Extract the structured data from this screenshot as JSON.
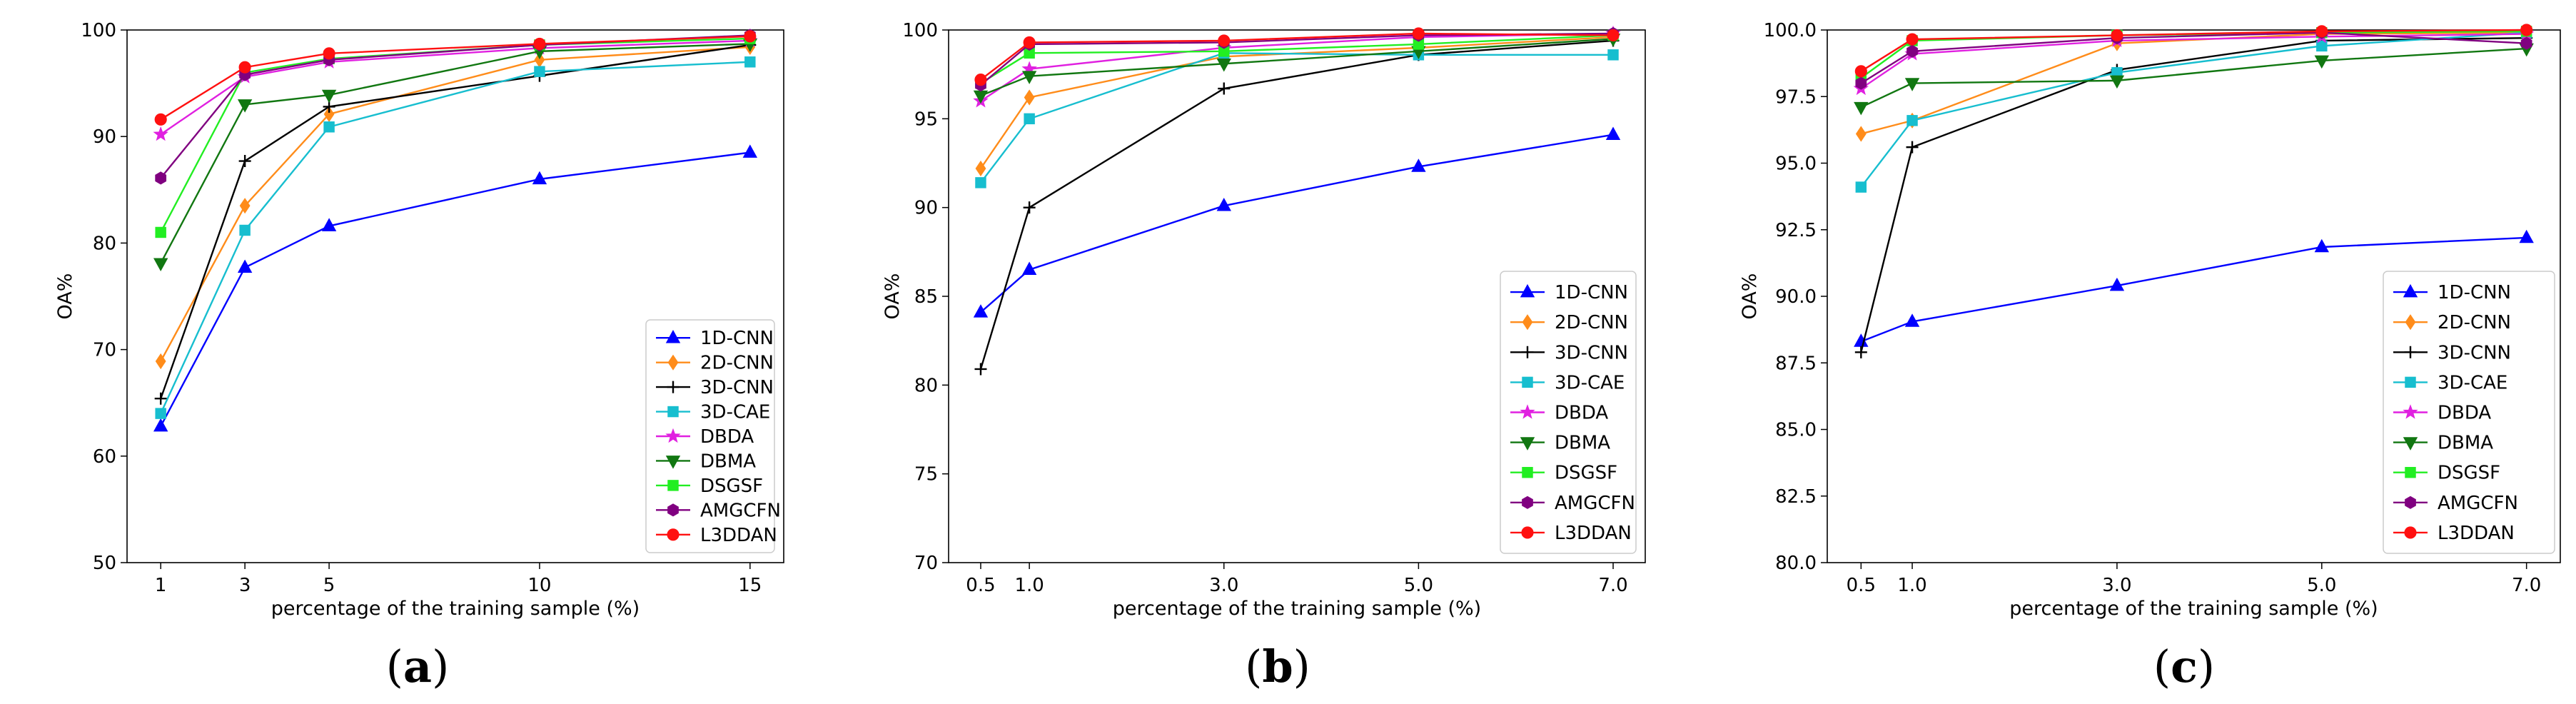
{
  "legend_entries": [
    "1D-CNN",
    "2D-CNN",
    "3D-CNN",
    "3D-CAE",
    "DBDA",
    "DBMA",
    "DSGSF",
    "AMGCFN",
    "L3DDAN"
  ],
  "series_styles": [
    {
      "name": "1D-CNN",
      "color": "#0000ff",
      "marker": "triangle-up"
    },
    {
      "name": "2D-CNN",
      "color": "#ff8c1a",
      "marker": "diamond"
    },
    {
      "name": "3D-CNN",
      "color": "#000000",
      "marker": "plus"
    },
    {
      "name": "3D-CAE",
      "color": "#17becf",
      "marker": "square"
    },
    {
      "name": "DBDA",
      "color": "#e020e0",
      "marker": "star"
    },
    {
      "name": "DBMA",
      "color": "#117711",
      "marker": "triangle-down"
    },
    {
      "name": "DSGSF",
      "color": "#22ee22",
      "marker": "square"
    },
    {
      "name": "AMGCFN",
      "color": "#800080",
      "marker": "hexagon"
    },
    {
      "name": "L3DDAN",
      "color": "#ff1010",
      "marker": "circle"
    }
  ],
  "chart_data": [
    {
      "type": "line",
      "panel_label": "a",
      "xlabel": "percentage of the training sample (%)",
      "ylabel": "OA%",
      "x": [
        1,
        3,
        5,
        10,
        15
      ],
      "xticks": [
        "1",
        "3",
        "5",
        "10",
        "15"
      ],
      "xlim": [
        0.2,
        15.8
      ],
      "ylim": [
        50,
        100
      ],
      "yticks": [
        50,
        60,
        70,
        80,
        90,
        100
      ],
      "ytick_labels": [
        "50",
        "60",
        "70",
        "80",
        "90",
        "100"
      ],
      "grid": false,
      "legend": "bottom-right",
      "series": [
        {
          "name": "1D-CNN",
          "values": [
            62.8,
            77.7,
            81.6,
            86.0,
            88.5
          ]
        },
        {
          "name": "2D-CNN",
          "values": [
            68.9,
            83.5,
            92.1,
            97.2,
            98.4
          ]
        },
        {
          "name": "3D-CNN",
          "values": [
            65.4,
            87.7,
            92.8,
            95.7,
            98.6
          ]
        },
        {
          "name": "3D-CAE",
          "values": [
            64.0,
            81.2,
            90.9,
            96.1,
            97.0
          ]
        },
        {
          "name": "DBDA",
          "values": [
            90.2,
            95.6,
            97.0,
            98.3,
            99.0
          ]
        },
        {
          "name": "DBMA",
          "values": [
            78.1,
            93.0,
            93.9,
            98.0,
            98.7
          ]
        },
        {
          "name": "DSGSF",
          "values": [
            81.0,
            96.0,
            97.3,
            98.6,
            99.2
          ]
        },
        {
          "name": "AMGCFN",
          "values": [
            86.1,
            95.8,
            97.2,
            98.6,
            99.5
          ]
        },
        {
          "name": "L3DDAN",
          "values": [
            91.6,
            96.5,
            97.8,
            98.7,
            99.4
          ]
        }
      ]
    },
    {
      "type": "line",
      "panel_label": "b",
      "xlabel": "percentage of the training sample (%)",
      "ylabel": "OA%",
      "x": [
        0.5,
        1.0,
        3.0,
        5.0,
        7.0
      ],
      "xticks": [
        "0.5",
        "1.0",
        "3.0",
        "5.0",
        "7.0"
      ],
      "xlim": [
        0.17,
        7.33
      ],
      "ylim": [
        70,
        100
      ],
      "yticks": [
        70,
        75,
        80,
        85,
        90,
        95,
        100
      ],
      "ytick_labels": [
        "70",
        "75",
        "80",
        "85",
        "90",
        "95",
        "100"
      ],
      "grid": false,
      "legend": "bottom-right",
      "series": [
        {
          "name": "1D-CNN",
          "values": [
            84.1,
            86.5,
            90.1,
            92.3,
            94.1
          ]
        },
        {
          "name": "2D-CNN",
          "values": [
            92.2,
            96.2,
            98.5,
            99.0,
            99.6
          ]
        },
        {
          "name": "3D-CNN",
          "values": [
            80.9,
            90.0,
            96.7,
            98.6,
            99.4
          ]
        },
        {
          "name": "3D-CAE",
          "values": [
            91.4,
            95.0,
            98.7,
            98.6,
            98.6
          ]
        },
        {
          "name": "DBDA",
          "values": [
            96.0,
            97.8,
            99.0,
            99.6,
            99.8
          ]
        },
        {
          "name": "DBMA",
          "values": [
            96.3,
            97.4,
            98.1,
            98.8,
            99.5
          ]
        },
        {
          "name": "DSGSF",
          "values": [
            97.0,
            98.7,
            98.8,
            99.2,
            99.7
          ]
        },
        {
          "name": "AMGCFN",
          "values": [
            96.9,
            99.2,
            99.3,
            99.7,
            99.8
          ]
        },
        {
          "name": "L3DDAN",
          "values": [
            97.2,
            99.3,
            99.4,
            99.8,
            99.7
          ]
        }
      ]
    },
    {
      "type": "line",
      "panel_label": "c",
      "xlabel": "percentage of the training sample (%)",
      "ylabel": "OA%",
      "x": [
        0.5,
        1.0,
        3.0,
        5.0,
        7.0
      ],
      "xticks": [
        "0.5",
        "1.0",
        "3.0",
        "5.0",
        "7.0"
      ],
      "xlim": [
        0.17,
        7.33
      ],
      "ylim": [
        80,
        100
      ],
      "yticks": [
        80,
        82.5,
        85,
        87.5,
        90,
        92.5,
        95,
        97.5,
        100
      ],
      "ytick_labels": [
        "80.0",
        "82.5",
        "85.0",
        "87.5",
        "90.0",
        "92.5",
        "95.0",
        "97.5",
        "100.0"
      ],
      "grid": false,
      "legend": "bottom-right",
      "series": [
        {
          "name": "1D-CNN",
          "values": [
            88.3,
            89.05,
            90.4,
            91.85,
            92.2
          ]
        },
        {
          "name": "2D-CNN",
          "values": [
            96.1,
            96.6,
            99.5,
            99.85,
            99.9
          ]
        },
        {
          "name": "3D-CNN",
          "values": [
            87.9,
            95.6,
            98.5,
            99.6,
            99.7
          ]
        },
        {
          "name": "3D-CAE",
          "values": [
            94.1,
            96.6,
            98.4,
            99.4,
            99.9
          ]
        },
        {
          "name": "DBDA",
          "values": [
            97.8,
            99.1,
            99.6,
            99.75,
            99.85
          ]
        },
        {
          "name": "DBMA",
          "values": [
            97.1,
            98.0,
            98.1,
            98.85,
            99.3
          ]
        },
        {
          "name": "DSGSF",
          "values": [
            98.2,
            99.6,
            99.8,
            99.9,
            99.95
          ]
        },
        {
          "name": "AMGCFN",
          "values": [
            98.0,
            99.2,
            99.7,
            99.9,
            99.5
          ]
        },
        {
          "name": "L3DDAN",
          "values": [
            98.45,
            99.65,
            99.8,
            99.95,
            100.0
          ]
        }
      ]
    }
  ]
}
